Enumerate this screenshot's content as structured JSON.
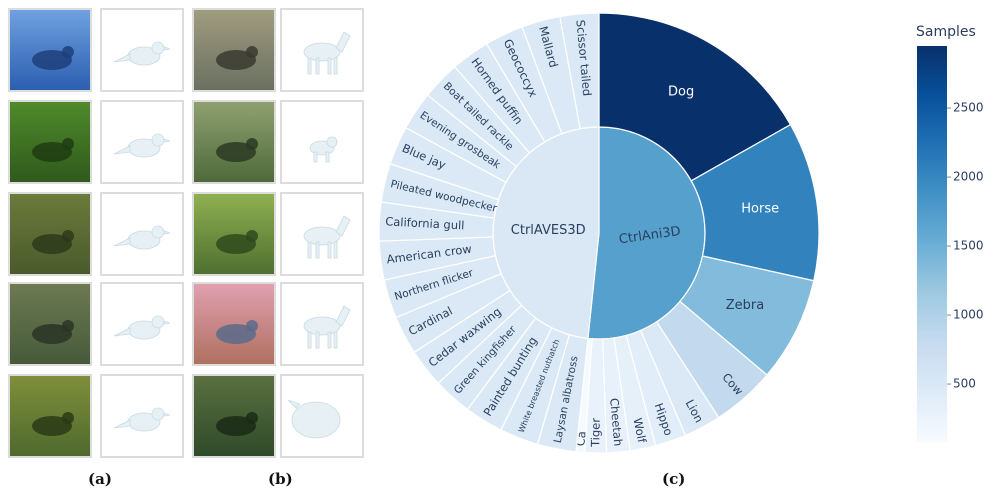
{
  "panels": {
    "a": "(a)",
    "b": "(b)",
    "c": "(c)"
  },
  "colors": {
    "scale": [
      "#f7fbff",
      "#deebf7",
      "#c6dbef",
      "#9ecae1",
      "#6baed6",
      "#4292c6",
      "#2171b5",
      "#08519c",
      "#08306b"
    ],
    "image_borders": "#dcdcdc",
    "mesh": "#e6f0f5"
  },
  "images": {
    "a": [
      {
        "photo": "bird-in-flowers-photo",
        "mesh": "bird-mesh"
      },
      {
        "photo": "red-cardinal-photo",
        "mesh": "bird-mesh"
      },
      {
        "photo": "black-bird-garden-photo",
        "mesh": "bird-mesh"
      },
      {
        "photo": "blue-jay-photo",
        "mesh": "bird-mesh"
      },
      {
        "photo": "dark-bird-on-post-photo",
        "mesh": "bird-mesh"
      }
    ],
    "b": [
      {
        "photo": "cheetah-photo",
        "mesh": "horse-mesh"
      },
      {
        "photo": "dog-at-river-photo",
        "mesh": "dog-mesh"
      },
      {
        "photo": "horse-on-field-photo",
        "mesh": "horse-mesh"
      },
      {
        "photo": "zebra-station-photo",
        "mesh": "horse-mesh"
      },
      {
        "photo": "cow-in-forest-photo",
        "mesh": "cow-mesh"
      }
    ]
  },
  "chart_data": {
    "type": "sunburst",
    "colorbar": {
      "title": "Samples",
      "min": 80,
      "max": 2950,
      "ticks": [
        "500",
        "1000",
        "1500",
        "2000",
        "2500"
      ]
    },
    "roots": [
      {
        "name": "CtrlAni3D",
        "value": 9300,
        "children": [
          {
            "name": "Dog",
            "value": 2950
          },
          {
            "name": "Horse",
            "value": 2050
          },
          {
            "name": "Zebra",
            "value": 1350
          },
          {
            "name": "Cow",
            "value": 820
          },
          {
            "name": "Lion",
            "value": 480
          },
          {
            "name": "Hippo",
            "value": 400
          },
          {
            "name": "Wolf",
            "value": 330
          },
          {
            "name": "Cheetah",
            "value": 300
          },
          {
            "name": "Tiger",
            "value": 280
          },
          {
            "name": "Ca",
            "value": 110
          }
        ]
      },
      {
        "name": "CtrlAVES3D",
        "value": 8700,
        "children": [
          {
            "name": "Laysan albatross",
            "value": 480
          },
          {
            "name": "White breasted nuthatch",
            "value": 480
          },
          {
            "name": "Painted bunting",
            "value": 480
          },
          {
            "name": "Green kingfisher",
            "value": 480
          },
          {
            "name": "Cedar waxwing",
            "value": 480
          },
          {
            "name": "Cardinal",
            "value": 480
          },
          {
            "name": "Northern flicker",
            "value": 480
          },
          {
            "name": "American crow",
            "value": 480
          },
          {
            "name": "California gull",
            "value": 480
          },
          {
            "name": "Pileated woodpecker",
            "value": 480
          },
          {
            "name": "Blue jay",
            "value": 480
          },
          {
            "name": "Evening grosbeak",
            "value": 480
          },
          {
            "name": "Boat tailed rackle",
            "value": 480
          },
          {
            "name": "Horned puffin",
            "value": 480
          },
          {
            "name": "Geococcyx",
            "value": 480
          },
          {
            "name": "Mallard",
            "value": 480
          },
          {
            "name": "Scissor tailed",
            "value": 480
          }
        ]
      }
    ]
  }
}
